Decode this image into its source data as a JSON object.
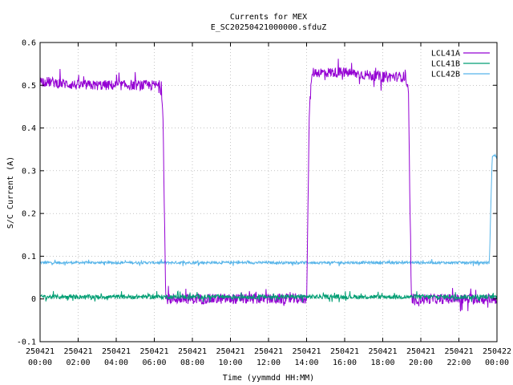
{
  "chart_data": {
    "type": "line",
    "title": "Currents for MEX",
    "subtitle": "E_SC20250421000000.sfduZ",
    "xlabel": "Time (yymmdd HH:MM)",
    "ylabel": "S/C Current (A)",
    "xlim": [
      0,
      24
    ],
    "ylim": [
      -0.1,
      0.6
    ],
    "grid": true,
    "legend_position": "top-right",
    "x_ticks": [
      {
        "value": 0,
        "date": "250421",
        "time": "00:00"
      },
      {
        "value": 2,
        "date": "250421",
        "time": "02:00"
      },
      {
        "value": 4,
        "date": "250421",
        "time": "04:00"
      },
      {
        "value": 6,
        "date": "250421",
        "time": "06:00"
      },
      {
        "value": 8,
        "date": "250421",
        "time": "08:00"
      },
      {
        "value": 10,
        "date": "250421",
        "time": "10:00"
      },
      {
        "value": 12,
        "date": "250421",
        "time": "12:00"
      },
      {
        "value": 14,
        "date": "250421",
        "time": "14:00"
      },
      {
        "value": 16,
        "date": "250421",
        "time": "16:00"
      },
      {
        "value": 18,
        "date": "250421",
        "time": "18:00"
      },
      {
        "value": 20,
        "date": "250421",
        "time": "20:00"
      },
      {
        "value": 22,
        "date": "250421",
        "time": "22:00"
      },
      {
        "value": 24,
        "date": "250422",
        "time": "00:00"
      }
    ],
    "y_ticks": [
      {
        "value": -0.1,
        "label": "-0.1"
      },
      {
        "value": 0,
        "label": "0"
      },
      {
        "value": 0.1,
        "label": "0.1"
      },
      {
        "value": 0.2,
        "label": "0.2"
      },
      {
        "value": 0.3,
        "label": "0.3"
      },
      {
        "value": 0.4,
        "label": "0.4"
      },
      {
        "value": 0.5,
        "label": "0.5"
      },
      {
        "value": 0.6,
        "label": "0.6"
      }
    ],
    "series": [
      {
        "name": "LCL41A",
        "color": "#9400d3",
        "noise": 0.012,
        "points": [
          [
            0,
            0.51
          ],
          [
            1,
            0.505
          ],
          [
            2,
            0.5
          ],
          [
            3,
            0.5
          ],
          [
            4,
            0.5
          ],
          [
            5,
            0.5
          ],
          [
            6.3,
            0.5
          ],
          [
            6.45,
            0.45
          ],
          [
            6.6,
            0.0
          ],
          [
            8,
            0.0
          ],
          [
            10,
            0.0
          ],
          [
            12,
            0.0
          ],
          [
            14.0,
            0.0
          ],
          [
            14.15,
            0.45
          ],
          [
            14.3,
            0.53
          ],
          [
            16,
            0.53
          ],
          [
            18,
            0.52
          ],
          [
            19.2,
            0.52
          ],
          [
            19.35,
            0.48
          ],
          [
            19.5,
            0.0
          ],
          [
            22,
            0.0
          ],
          [
            24,
            0.0
          ]
        ]
      },
      {
        "name": "LCL41B",
        "color": "#009e73",
        "noise": 0.005,
        "points": [
          [
            0,
            0.005
          ],
          [
            24,
            0.005
          ]
        ]
      },
      {
        "name": "LCL42B",
        "color": "#56b4e9",
        "noise": 0.003,
        "points": [
          [
            0,
            0.085
          ],
          [
            23.6,
            0.085
          ],
          [
            23.75,
            0.335
          ],
          [
            24,
            0.335
          ]
        ]
      }
    ]
  }
}
